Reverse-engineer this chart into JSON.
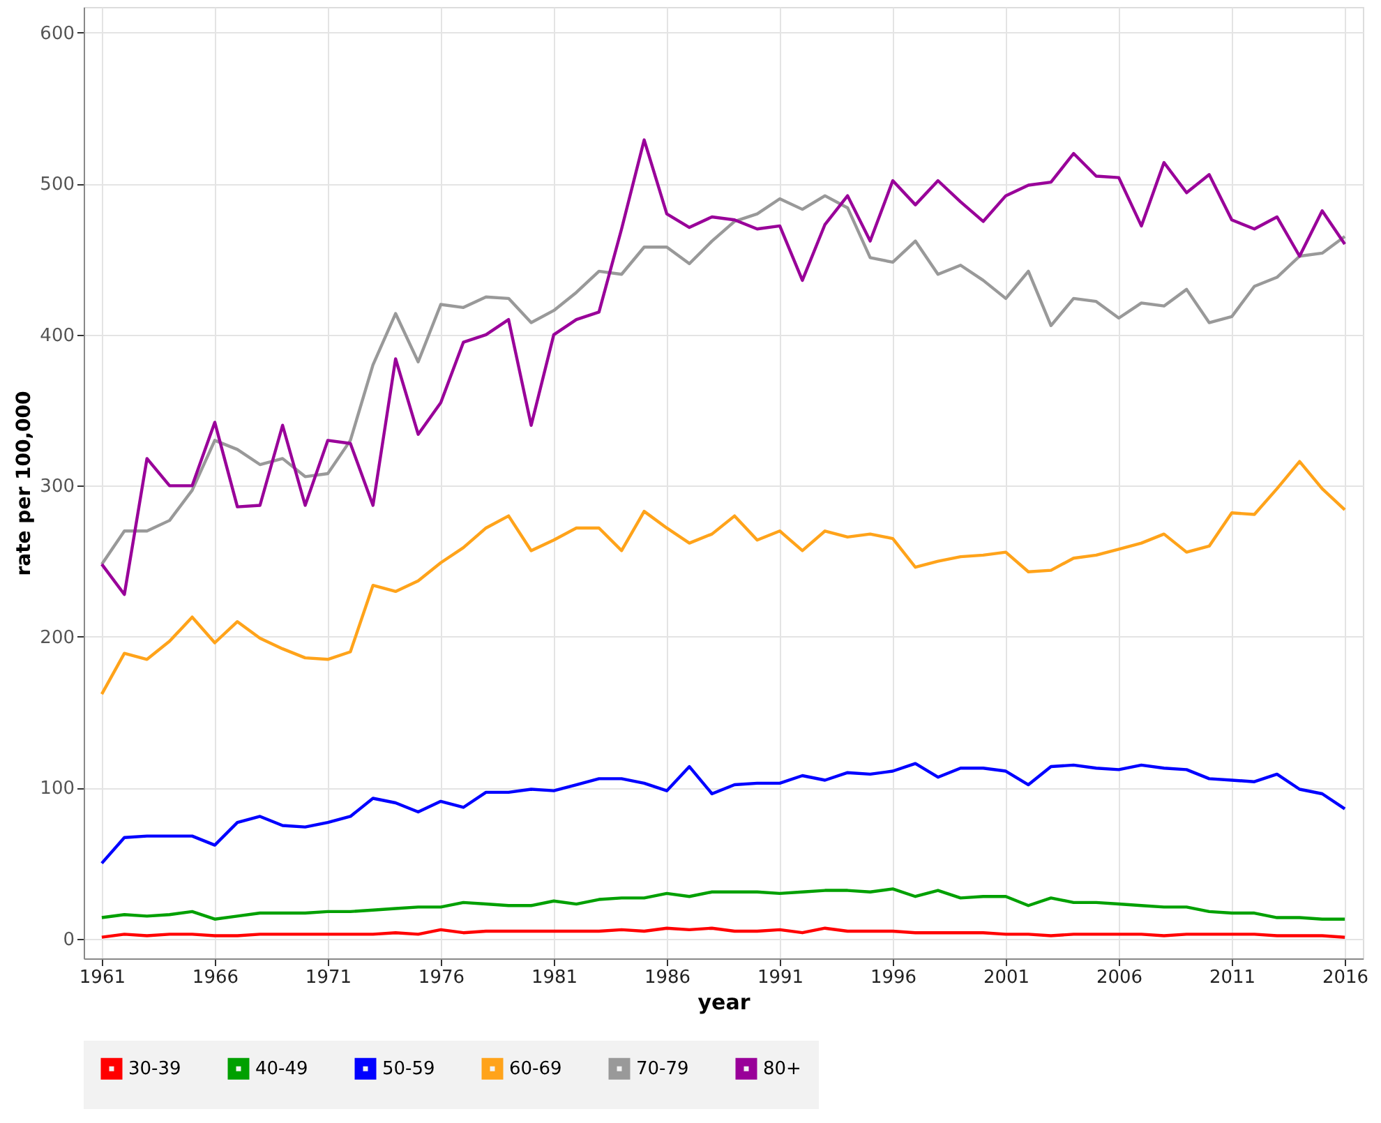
{
  "chart_data": {
    "type": "line",
    "xlabel": "year",
    "ylabel": "rate per 100,000",
    "x": [
      1961,
      1962,
      1963,
      1964,
      1965,
      1966,
      1967,
      1968,
      1969,
      1970,
      1971,
      1972,
      1973,
      1974,
      1975,
      1976,
      1977,
      1978,
      1979,
      1980,
      1981,
      1982,
      1983,
      1984,
      1985,
      1986,
      1987,
      1988,
      1989,
      1990,
      1991,
      1992,
      1993,
      1994,
      1995,
      1996,
      1997,
      1998,
      1999,
      2000,
      2001,
      2002,
      2003,
      2004,
      2005,
      2006,
      2007,
      2008,
      2009,
      2010,
      2011,
      2012,
      2013,
      2014,
      2015,
      2016
    ],
    "series": [
      {
        "name": "30-39",
        "color": "#ff0000",
        "values": [
          1,
          3,
          2,
          3,
          3,
          2,
          2,
          3,
          3,
          3,
          3,
          3,
          3,
          4,
          3,
          6,
          4,
          5,
          5,
          5,
          5,
          5,
          5,
          6,
          5,
          7,
          6,
          7,
          5,
          5,
          6,
          4,
          7,
          5,
          5,
          5,
          4,
          4,
          4,
          4,
          3,
          3,
          2,
          3,
          3,
          3,
          3,
          2,
          3,
          3,
          3,
          3,
          2,
          2,
          2,
          1
        ]
      },
      {
        "name": "40-49",
        "color": "#00a000",
        "values": [
          14,
          16,
          15,
          16,
          18,
          13,
          15,
          17,
          17,
          17,
          18,
          18,
          19,
          20,
          21,
          21,
          24,
          23,
          22,
          22,
          25,
          23,
          26,
          27,
          27,
          30,
          28,
          31,
          31,
          31,
          30,
          31,
          32,
          32,
          31,
          33,
          28,
          32,
          27,
          28,
          28,
          22,
          27,
          24,
          24,
          23,
          22,
          21,
          21,
          18,
          17,
          17,
          14,
          14,
          13,
          13
        ]
      },
      {
        "name": "50-59",
        "color": "#0000ff",
        "values": [
          50,
          67,
          68,
          68,
          68,
          62,
          77,
          81,
          75,
          74,
          77,
          81,
          93,
          90,
          84,
          91,
          87,
          97,
          97,
          99,
          98,
          102,
          106,
          106,
          103,
          98,
          114,
          96,
          102,
          103,
          103,
          108,
          105,
          110,
          109,
          111,
          116,
          107,
          113,
          113,
          111,
          102,
          114,
          115,
          113,
          112,
          115,
          113,
          112,
          106,
          105,
          104,
          109,
          99,
          96,
          86
        ]
      },
      {
        "name": "60-69",
        "color": "#ffa31a",
        "values": [
          162,
          189,
          185,
          197,
          213,
          196,
          210,
          199,
          192,
          186,
          185,
          190,
          234,
          230,
          237,
          249,
          259,
          272,
          280,
          257,
          264,
          272,
          272,
          257,
          283,
          272,
          262,
          268,
          280,
          264,
          270,
          257,
          270,
          266,
          268,
          265,
          246,
          250,
          253,
          254,
          256,
          243,
          244,
          252,
          254,
          258,
          262,
          268,
          256,
          260,
          282,
          281,
          298,
          316,
          298,
          284
        ]
      },
      {
        "name": "70-79",
        "color": "#999999",
        "values": [
          248,
          270,
          270,
          277,
          297,
          330,
          324,
          314,
          318,
          306,
          308,
          330,
          380,
          414,
          382,
          420,
          418,
          425,
          424,
          408,
          416,
          428,
          442,
          440,
          458,
          458,
          447,
          462,
          475,
          480,
          490,
          483,
          492,
          484,
          451,
          448,
          462,
          440,
          446,
          436,
          424,
          442,
          406,
          424,
          422,
          411,
          421,
          419,
          430,
          408,
          412,
          432,
          438,
          452,
          454,
          465
        ]
      },
      {
        "name": "80+",
        "color": "#990099",
        "values": [
          248,
          228,
          318,
          300,
          300,
          342,
          286,
          287,
          340,
          287,
          330,
          328,
          287,
          384,
          334,
          355,
          395,
          400,
          410,
          340,
          400,
          410,
          415,
          470,
          529,
          480,
          471,
          478,
          476,
          470,
          472,
          436,
          473,
          492,
          462,
          502,
          486,
          502,
          488,
          475,
          492,
          499,
          501,
          520,
          505,
          504,
          472,
          514,
          494,
          506,
          476,
          470,
          478,
          452,
          482,
          460
        ]
      }
    ],
    "xlim": [
      1960.2,
      2016.8
    ],
    "xticks": [
      1961,
      1966,
      1971,
      1976,
      1981,
      1986,
      1991,
      1996,
      2001,
      2006,
      2011,
      2016
    ],
    "ylim": [
      -13,
      617
    ],
    "yticks": [
      0,
      100,
      200,
      300,
      400,
      500,
      600
    ],
    "grid": true,
    "legend": "bottom",
    "marker": "none",
    "line_style": "solid"
  }
}
